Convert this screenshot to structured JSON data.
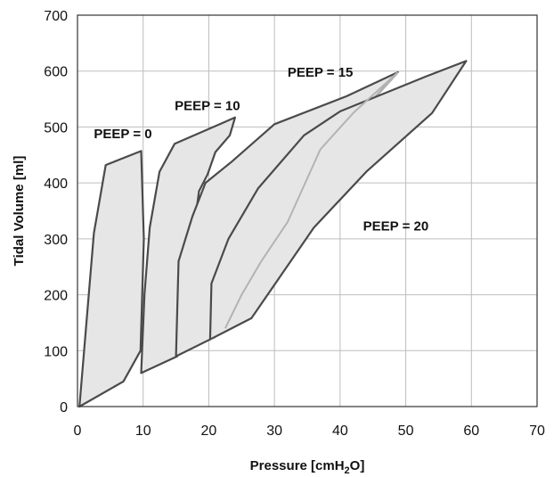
{
  "chart_data": {
    "type": "line",
    "title": "",
    "xlabel": "Pressure [cmH2O]",
    "xlabel_parts": {
      "main": "Pressure [cmH",
      "sub": "2",
      "tail": "O]"
    },
    "ylabel": "Tidal Volume [ml]",
    "xlim": [
      0,
      70
    ],
    "ylim": [
      0,
      700
    ],
    "xticks": [
      0,
      10,
      20,
      30,
      40,
      50,
      60,
      70
    ],
    "yticks": [
      0,
      100,
      200,
      300,
      400,
      500,
      600,
      700
    ],
    "xtick_labels": [
      "0",
      "10",
      "20",
      "30",
      "40",
      "50",
      "60",
      "70"
    ],
    "ytick_labels": [
      "0",
      "100",
      "200",
      "300",
      "400",
      "500",
      "600",
      "700"
    ],
    "grid": true,
    "legend": "none",
    "series": [
      {
        "name": "PEEP = 0",
        "loop": [
          [
            0.3,
            0
          ],
          [
            2.5,
            310
          ],
          [
            4.3,
            432
          ],
          [
            9.7,
            457
          ],
          [
            10.1,
            300
          ],
          [
            9.6,
            100
          ],
          [
            7.0,
            45
          ],
          [
            0.3,
            0
          ]
        ],
        "inner": []
      },
      {
        "name": "PEEP = 10",
        "loop": [
          [
            9.7,
            60
          ],
          [
            10.2,
            200
          ],
          [
            11.0,
            320
          ],
          [
            12.5,
            420
          ],
          [
            14.8,
            470
          ],
          [
            24.0,
            517
          ],
          [
            23.2,
            485
          ],
          [
            21.0,
            455
          ],
          [
            19.8,
            415
          ],
          [
            18.5,
            385
          ],
          [
            15.2,
            90
          ],
          [
            9.7,
            60
          ]
        ],
        "inner": [
          [
            16.0,
            95
          ],
          [
            17.5,
            150
          ],
          [
            19.0,
            220
          ],
          [
            20.2,
            310
          ],
          [
            20.6,
            400
          ]
        ]
      },
      {
        "name": "PEEP = 15",
        "loop": [
          [
            15.0,
            90
          ],
          [
            15.4,
            260
          ],
          [
            17.5,
            340
          ],
          [
            19.5,
            400
          ],
          [
            23.5,
            438
          ],
          [
            30.0,
            505
          ],
          [
            41.0,
            555
          ],
          [
            48.8,
            598
          ],
          [
            42.0,
            510
          ],
          [
            38.0,
            485
          ],
          [
            35.0,
            450
          ],
          [
            30.0,
            330
          ],
          [
            27.5,
            290
          ],
          [
            20.2,
            120
          ],
          [
            15.0,
            90
          ]
        ],
        "inner": [
          [
            20.8,
            122
          ],
          [
            23.0,
            160
          ],
          [
            26.0,
            210
          ],
          [
            30.0,
            300
          ],
          [
            36.0,
            420
          ],
          [
            42.0,
            510
          ],
          [
            48.8,
            598
          ]
        ]
      },
      {
        "name": "PEEP = 20",
        "loop": [
          [
            20.2,
            120
          ],
          [
            20.4,
            220
          ],
          [
            23.0,
            300
          ],
          [
            27.5,
            390
          ],
          [
            34.5,
            485
          ],
          [
            40.0,
            528
          ],
          [
            53.0,
            590
          ],
          [
            59.2,
            618
          ],
          [
            54.0,
            525
          ],
          [
            44.0,
            420
          ],
          [
            36.0,
            320
          ],
          [
            26.5,
            158
          ],
          [
            20.2,
            120
          ]
        ],
        "inner": [
          [
            22.5,
            140
          ],
          [
            25.0,
            200
          ],
          [
            28.0,
            260
          ],
          [
            32.0,
            330
          ],
          [
            37.0,
            460
          ],
          [
            42.0,
            525
          ],
          [
            48.8,
            598
          ]
        ]
      }
    ],
    "annotations": [
      {
        "text": "PEEP = 0",
        "x": 2.5,
        "y": 480
      },
      {
        "text": "PEEP = 10",
        "x": 14.8,
        "y": 530
      },
      {
        "text": "PEEP = 15",
        "x": 32.0,
        "y": 590
      },
      {
        "text": "PEEP = 20",
        "x": 43.5,
        "y": 315
      }
    ]
  }
}
